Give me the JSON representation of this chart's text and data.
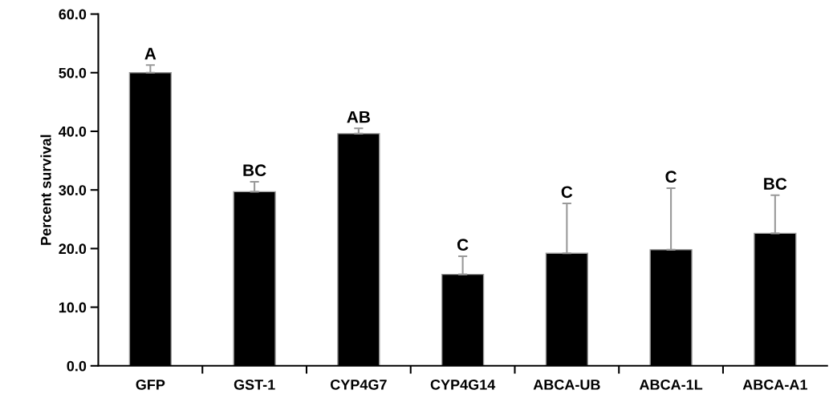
{
  "chart_data": {
    "type": "bar",
    "ylabel": "Percent survival",
    "categories": [
      "GFP",
      "GST-1",
      "CYP4G7",
      "CYP4G14",
      "ABCA-UB",
      "ABCA-1L",
      "ABCA-A1"
    ],
    "values": [
      50.0,
      29.7,
      39.6,
      15.6,
      19.2,
      19.8,
      22.6
    ],
    "errors": [
      [
        50.0,
        51.3
      ],
      [
        29.7,
        31.4
      ],
      [
        39.6,
        40.5
      ],
      [
        15.6,
        18.7
      ],
      [
        19.2,
        27.7
      ],
      [
        19.8,
        30.3
      ],
      [
        22.6,
        29.1
      ]
    ],
    "color": "#000000",
    "ylim": [
      0,
      60
    ],
    "yticks": [
      {
        "value": 0,
        "label": "0.0"
      },
      {
        "value": 10,
        "label": "10.0"
      },
      {
        "value": 20,
        "label": "20.0"
      },
      {
        "value": 30,
        "label": "30.0"
      },
      {
        "value": 40,
        "label": "40.0"
      },
      {
        "value": 50,
        "label": "50.0"
      },
      {
        "value": 60,
        "label": "60.0"
      }
    ],
    "grid": false,
    "legend": false,
    "annotations": [
      {
        "text": "A",
        "x": "GFP",
        "y": 51.3
      },
      {
        "text": "BC",
        "x": "GST-1",
        "y": 31.4
      },
      {
        "text": "AB",
        "x": "CYP4G7",
        "y": 40.5
      },
      {
        "text": "C",
        "x": "CYP4G14",
        "y": 18.7
      },
      {
        "text": "C",
        "x": "ABCA-UB",
        "y": 27.7
      },
      {
        "text": "C",
        "x": "ABCA-1L",
        "y": 30.3
      },
      {
        "text": "BC",
        "x": "ABCA-A1",
        "y": 29.1
      }
    ]
  }
}
